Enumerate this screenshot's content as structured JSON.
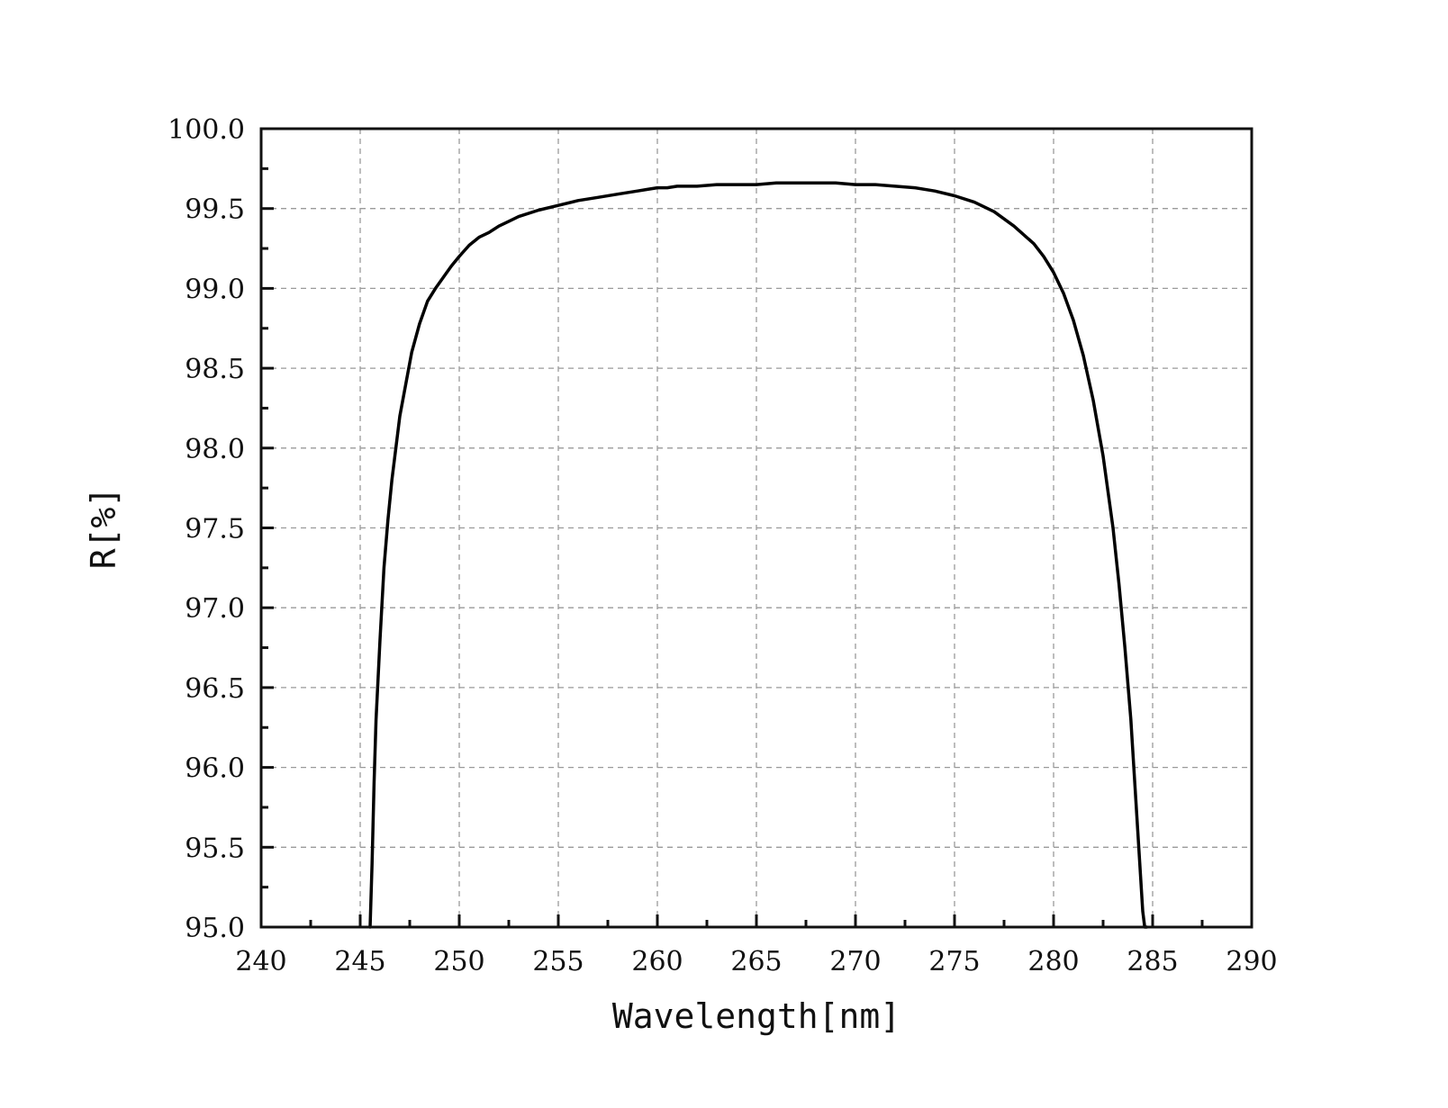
{
  "chart_data": {
    "type": "line",
    "title": "",
    "xlabel": "Wavelength[nm]",
    "ylabel": "R[%]",
    "xlim": [
      240,
      290
    ],
    "ylim": [
      95.0,
      100.0
    ],
    "x_ticks": [
      "240",
      "245",
      "250",
      "255",
      "260",
      "265",
      "270",
      "275",
      "280",
      "285",
      "290"
    ],
    "y_ticks": [
      "95.0",
      "95.5",
      "96.0",
      "96.5",
      "97.0",
      "97.5",
      "98.0",
      "98.5",
      "99.0",
      "99.5",
      "100.0"
    ],
    "grid": true,
    "grid_style": "dashed",
    "line_color": "#000000",
    "series": [
      {
        "x": [
          245.5,
          245.6,
          245.7,
          245.8,
          246.0,
          246.2,
          246.4,
          246.6,
          246.8,
          247.0,
          247.3,
          247.6,
          248.0,
          248.4,
          248.8,
          249.2,
          249.6,
          250.0,
          250.5,
          251.0,
          251.5,
          252.0,
          252.5,
          253.0,
          254.0,
          255.0,
          256.0,
          257.0,
          258.0,
          259.0,
          259.5,
          260.0,
          260.5,
          261.0,
          262.0,
          263.0,
          264.0,
          265.0,
          266.0,
          267.0,
          268.0,
          269.0,
          270.0,
          271.0,
          272.0,
          273.0,
          274.0,
          275.0,
          276.0,
          277.0,
          278.0,
          279.0,
          279.5,
          280.0,
          280.5,
          281.0,
          281.5,
          282.0,
          282.5,
          283.0,
          283.3,
          283.6,
          283.9,
          284.1,
          284.3,
          284.4,
          284.5,
          284.6,
          284.7
        ],
        "y": [
          95.0,
          95.4,
          95.9,
          96.3,
          96.8,
          97.25,
          97.55,
          97.8,
          98.0,
          98.2,
          98.4,
          98.6,
          98.78,
          98.92,
          99.0,
          99.07,
          99.14,
          99.2,
          99.27,
          99.32,
          99.35,
          99.39,
          99.42,
          99.45,
          99.49,
          99.52,
          99.55,
          99.57,
          99.59,
          99.61,
          99.62,
          99.63,
          99.63,
          99.64,
          99.64,
          99.65,
          99.65,
          99.65,
          99.66,
          99.66,
          99.66,
          99.66,
          99.65,
          99.65,
          99.64,
          99.63,
          99.61,
          99.58,
          99.54,
          99.48,
          99.39,
          99.28,
          99.2,
          99.1,
          98.97,
          98.8,
          98.58,
          98.3,
          97.95,
          97.5,
          97.15,
          96.75,
          96.3,
          95.9,
          95.5,
          95.3,
          95.1,
          95.0,
          95.0
        ]
      }
    ]
  }
}
